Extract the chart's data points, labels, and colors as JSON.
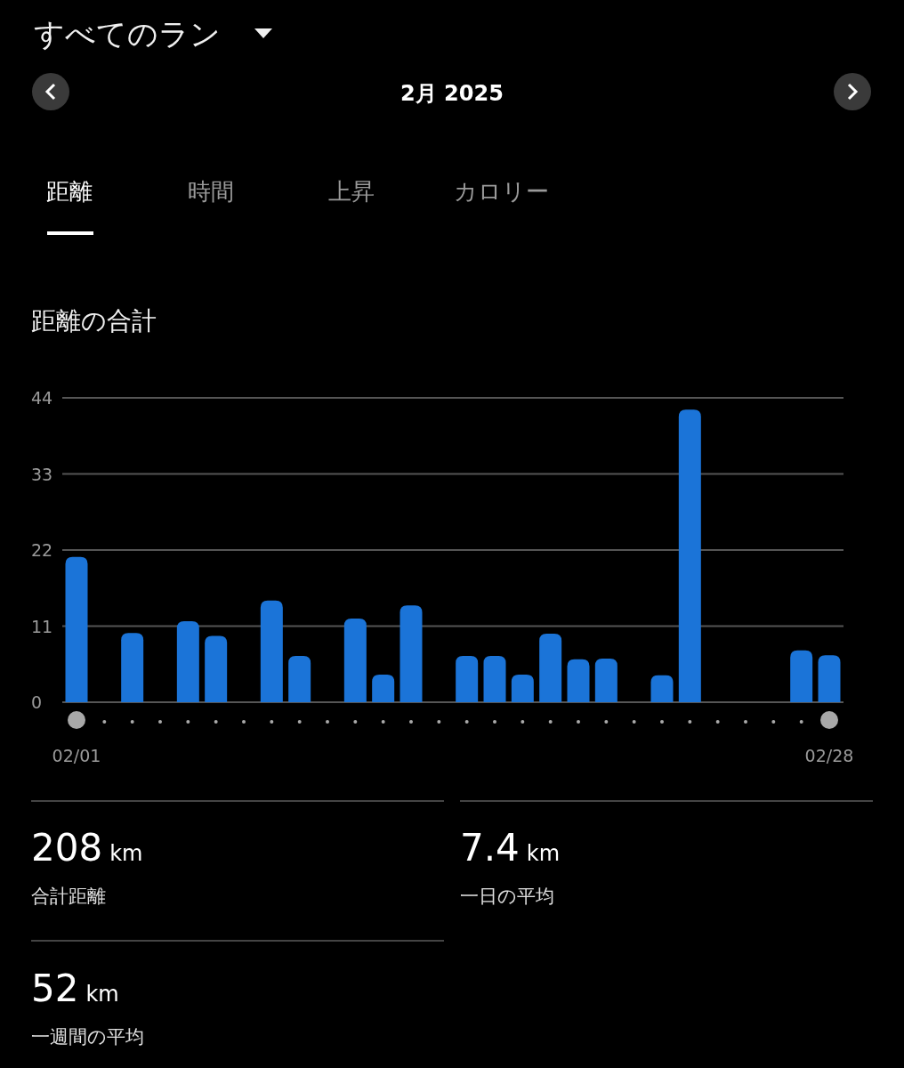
{
  "chart_data": {
    "type": "bar",
    "title": "距離の合計",
    "categories": [
      "02/01",
      null,
      null,
      null,
      null,
      null,
      null,
      null,
      null,
      null,
      null,
      null,
      null,
      null,
      null,
      null,
      null,
      null,
      null,
      null,
      null,
      null,
      null,
      null,
      null,
      null,
      null,
      "02/28"
    ],
    "values": [
      21,
      null,
      10,
      null,
      11.7,
      9.6,
      null,
      14.7,
      6.7,
      null,
      12.1,
      4,
      14,
      null,
      6.7,
      6.7,
      4,
      9.9,
      6.2,
      6.3,
      null,
      3.9,
      42.3,
      null,
      null,
      null,
      7.5,
      6.8
    ],
    "color": "#1b74d8",
    "ylim": [
      0,
      44
    ],
    "yticks": [
      0,
      11,
      22,
      33,
      44
    ],
    "grid": "y",
    "annotations": [
      "すべてのラン",
      "2月 2025",
      "距離",
      "時間",
      "上昇",
      "カロリー",
      "208 km",
      "合計距離",
      "7.4 km",
      "一日の平均",
      "52 km",
      "一週間の平均"
    ]
  }
}
